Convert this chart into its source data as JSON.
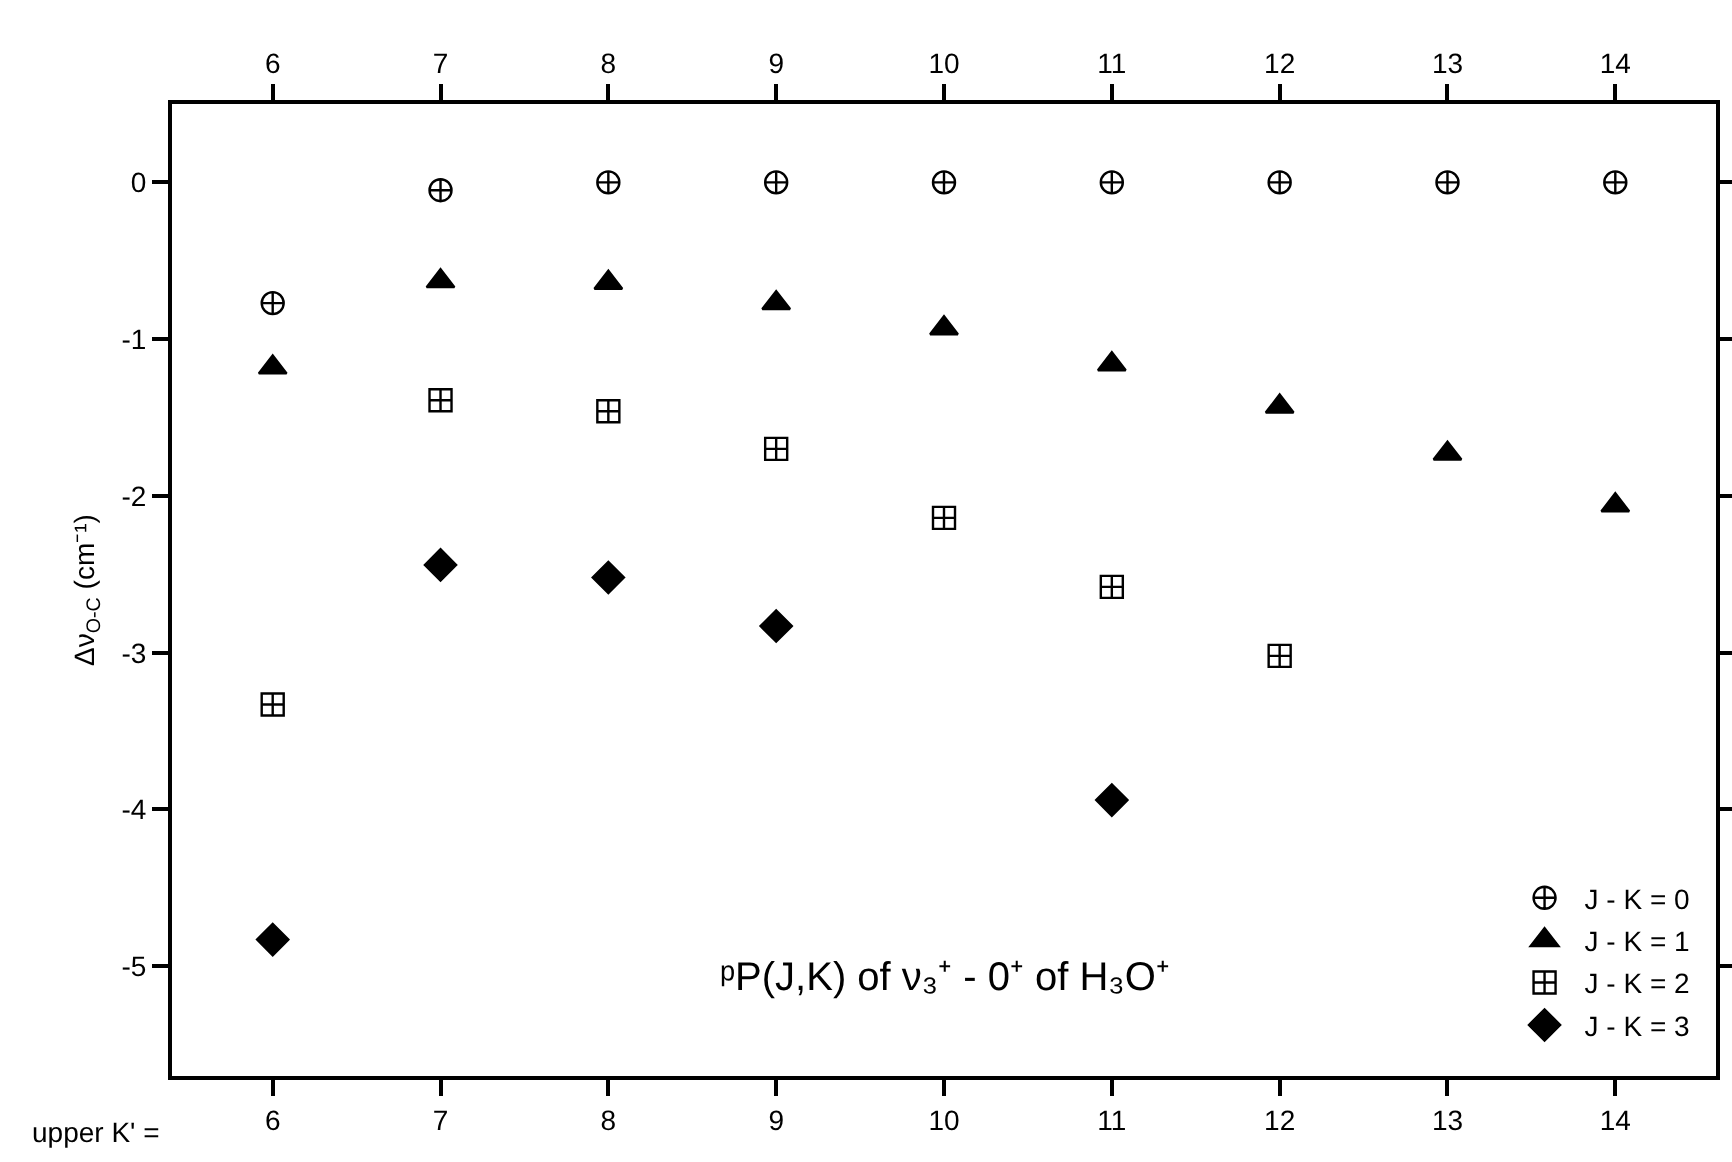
{
  "chart_data": {
    "type": "scatter",
    "ylabel": "Δν$_{O-C}$ (cm⁻¹)",
    "annotations": [
      "ᵖP(J,K) of ν₃⁺ - 0⁺ of H₃O⁺",
      "upper K' ="
    ],
    "xlim": [
      5.4,
      14.6
    ],
    "xticks": [
      6,
      7,
      8,
      9,
      10,
      11,
      12,
      13,
      14
    ],
    "x2lim": [
      5.4,
      14.6
    ],
    "x2ticks": [
      6,
      7,
      8,
      9,
      10,
      11,
      12,
      13,
      14
    ],
    "ylim": [
      -5.7,
      0.5
    ],
    "yticks": [
      -5,
      -4,
      -3,
      -2,
      -1,
      0
    ],
    "grid": false,
    "legend": "bottom right",
    "series": [
      {
        "name": "J - K = 0",
        "color": "#000000",
        "x": [
          6,
          7,
          8,
          9,
          10,
          11,
          12,
          13,
          14
        ],
        "values": [
          -0.77,
          -0.05,
          0,
          0,
          0,
          0,
          0,
          0,
          0
        ]
      },
      {
        "name": "J - K = 1",
        "color": "#000000",
        "marker": "triangle",
        "x": [
          6,
          7,
          8,
          9,
          10,
          11,
          12,
          13,
          14
        ],
        "values": [
          -1.18,
          -0.63,
          -0.64,
          -0.77,
          -0.93,
          -1.16,
          -1.43,
          -1.73,
          -2.06
        ]
      },
      {
        "name": "J - K = 2",
        "color": "#000000",
        "x": [
          6,
          7,
          8,
          9,
          10,
          11,
          12
        ],
        "values": [
          -3.33,
          -1.39,
          -1.46,
          -1.7,
          -2.14,
          -2.58,
          -3.02
        ]
      },
      {
        "name": "J - K = 3",
        "color": "#000000",
        "marker": "diamond",
        "x": [
          6,
          7,
          8,
          9,
          11
        ],
        "values": [
          -4.83,
          -2.44,
          -2.52,
          -2.83,
          -3.94
        ]
      }
    ]
  }
}
